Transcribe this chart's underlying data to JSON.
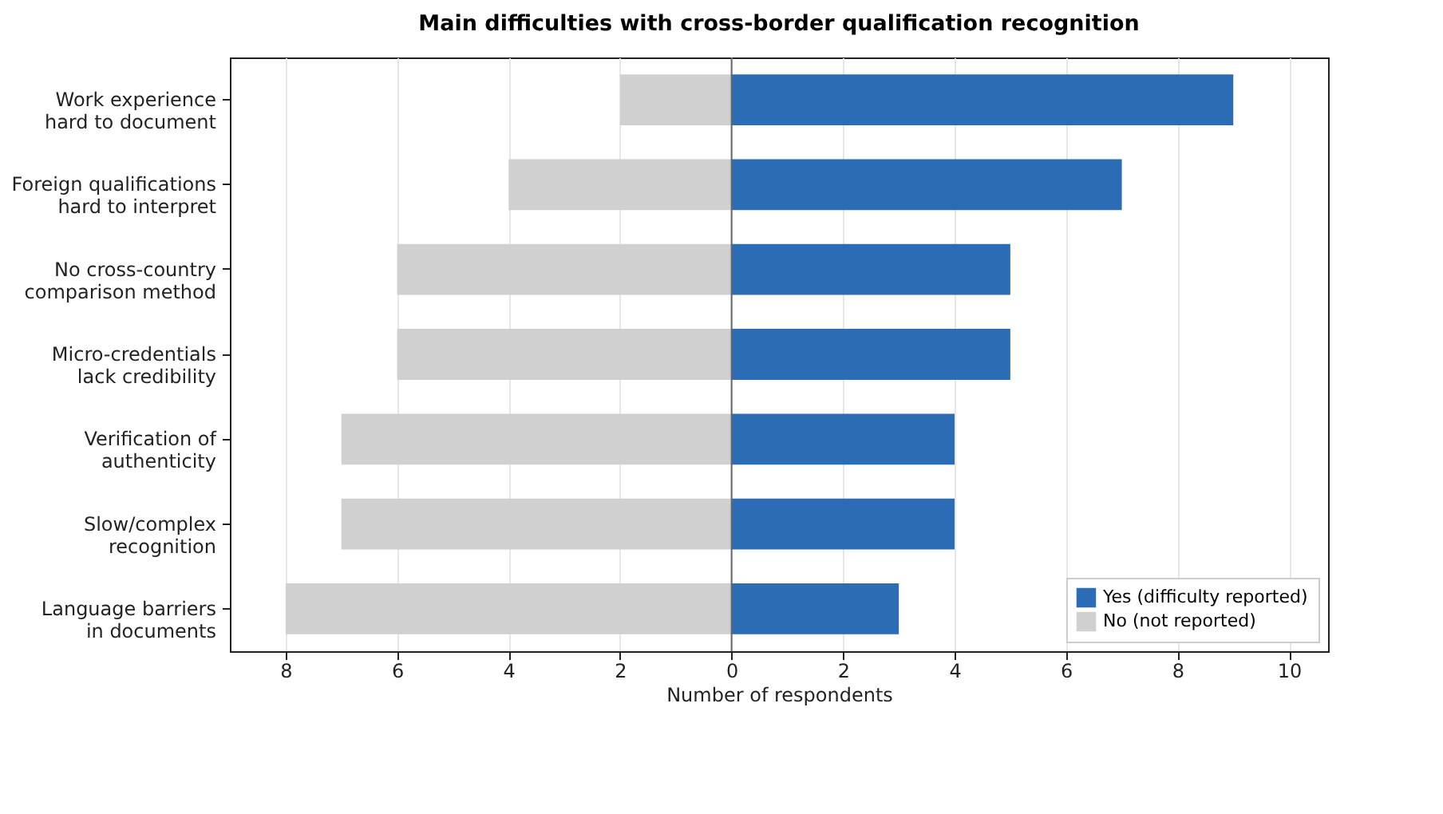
{
  "chart_data": {
    "type": "bar",
    "orientation": "horizontal",
    "title": "Main difficulties with cross-border qualification recognition",
    "xlabel": "Number of respondents",
    "categories": [
      "Work experience\nhard to document",
      "Foreign qualifications\nhard to interpret",
      "No cross-country\ncomparison method",
      "Micro-credentials\nlack credibility",
      "Verification of\nauthenticity",
      "Slow/complex\nrecognition",
      "Language barriers\nin documents"
    ],
    "series": [
      {
        "name": "Yes (difficulty reported)",
        "color": "#2b6cb4",
        "values": [
          9,
          7,
          5,
          5,
          4,
          4,
          3
        ]
      },
      {
        "name": "No (not reported)",
        "color": "#d0d0d0",
        "values": [
          -2,
          -4,
          -6,
          -6,
          -7,
          -7,
          -8
        ]
      }
    ],
    "xlim": [
      -9,
      10.7
    ],
    "xticks": [
      {
        "value": -8,
        "label": "8"
      },
      {
        "value": -6,
        "label": "6"
      },
      {
        "value": -4,
        "label": "4"
      },
      {
        "value": -2,
        "label": "2"
      },
      0,
      2,
      4,
      6,
      8,
      10
    ],
    "ref_lines": [
      {
        "axis": "x",
        "value": 0,
        "color": "#666666"
      }
    ],
    "stacked": true,
    "grid": "x",
    "legend": "bottom right"
  }
}
